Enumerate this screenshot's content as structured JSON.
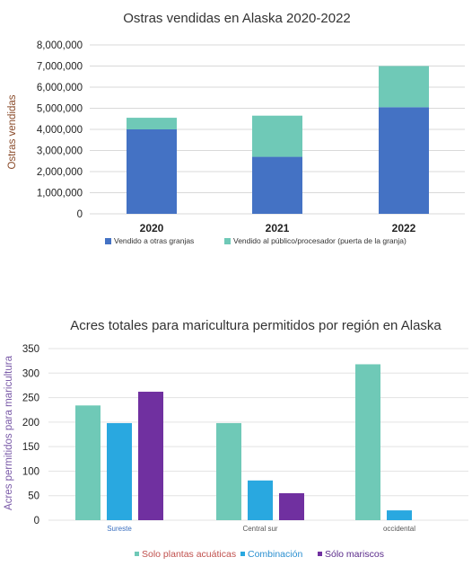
{
  "chart_data": [
    {
      "type": "bar",
      "stacked": true,
      "title": "Ostras vendidas en Alaska 2020-2022",
      "ylabel": "Ostras vendidas",
      "xlabel": "",
      "categories": [
        "2020",
        "2021",
        "2022"
      ],
      "ylim": [
        0,
        8000000
      ],
      "yticks": [
        "0",
        "1,000,000",
        "2,000,000",
        "3,000,000",
        "4,000,000",
        "5,000,000",
        "6,000,000",
        "7,000,000",
        "8,000,000"
      ],
      "ytick_values": [
        0,
        1000000,
        2000000,
        3000000,
        4000000,
        5000000,
        6000000,
        7000000,
        8000000
      ],
      "grid": true,
      "legend_position": "bottom",
      "series": [
        {
          "name": "Vendido a otras granjas",
          "color": "#4472c4",
          "values": [
            4000000,
            2700000,
            5050000
          ]
        },
        {
          "name": "Vendido al público/procesador (puerta de la granja)",
          "color": "#6fc9b7",
          "values": [
            550000,
            1950000,
            1950000
          ]
        }
      ]
    },
    {
      "type": "bar",
      "title": "Acres totales para maricultura permitidos por región en Alaska",
      "ylabel": "Acres permitidos para maricultura",
      "xlabel": "",
      "categories": [
        "Sureste",
        "Central sur",
        "occidental"
      ],
      "ylim": [
        0,
        350
      ],
      "yticks": [
        "0",
        "50",
        "100",
        "150",
        "200",
        "250",
        "300",
        "350"
      ],
      "ytick_values": [
        0,
        50,
        100,
        150,
        200,
        250,
        300,
        350
      ],
      "grid": true,
      "legend_position": "bottom",
      "series": [
        {
          "name": "Solo plantas acuáticas",
          "color": "#6fc9b7",
          "values": [
            234,
            198,
            318
          ]
        },
        {
          "name": "Combinación",
          "color": "#29a8e0",
          "values": [
            198,
            81,
            20
          ]
        },
        {
          "name": "Sólo mariscos",
          "color": "#7030a0",
          "values": [
            262,
            55,
            0
          ]
        }
      ]
    }
  ]
}
